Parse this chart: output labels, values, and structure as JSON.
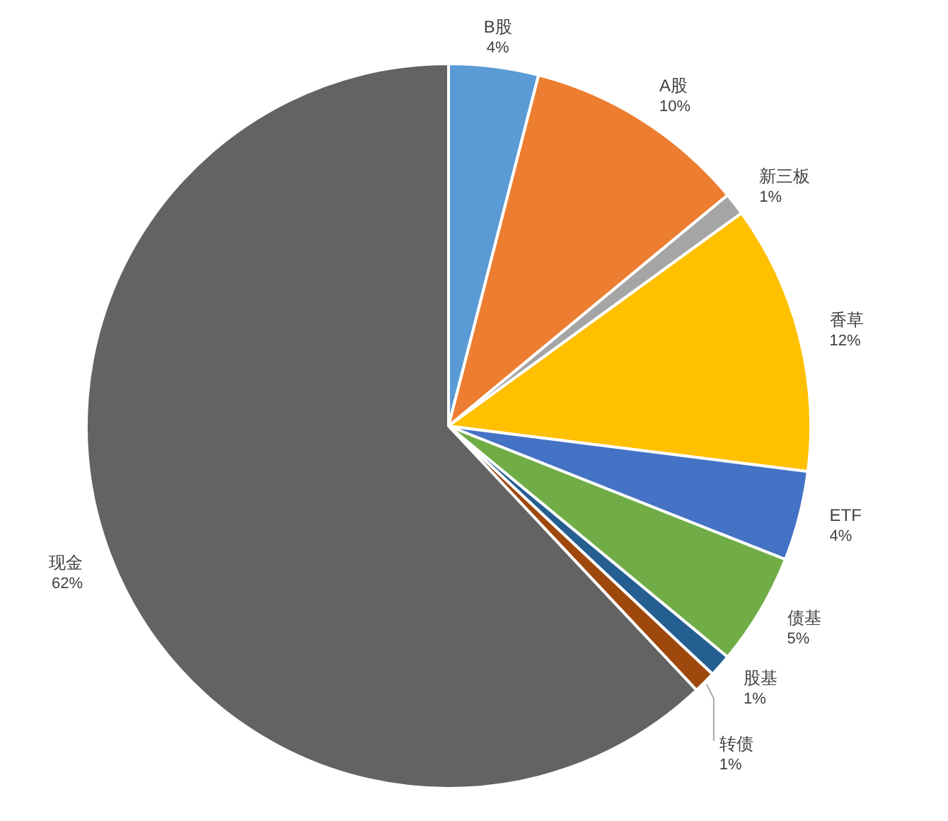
{
  "chart_data": {
    "type": "pie",
    "categories": [
      "B股",
      "A股",
      "新三板",
      "香草",
      "ETF",
      "债基",
      "股基",
      "转债",
      "现金"
    ],
    "values": [
      4,
      10,
      1,
      12,
      4,
      5,
      1,
      1,
      62
    ],
    "value_labels": [
      "4%",
      "10%",
      "1%",
      "12%",
      "4%",
      "5%",
      "1%",
      "1%",
      "62%"
    ],
    "colors": [
      "#5b9bd5",
      "#ed7d31",
      "#a5a5a5",
      "#ffc000",
      "#4472c4",
      "#70ad47",
      "#255e91",
      "#9e480e",
      "#636363"
    ]
  }
}
